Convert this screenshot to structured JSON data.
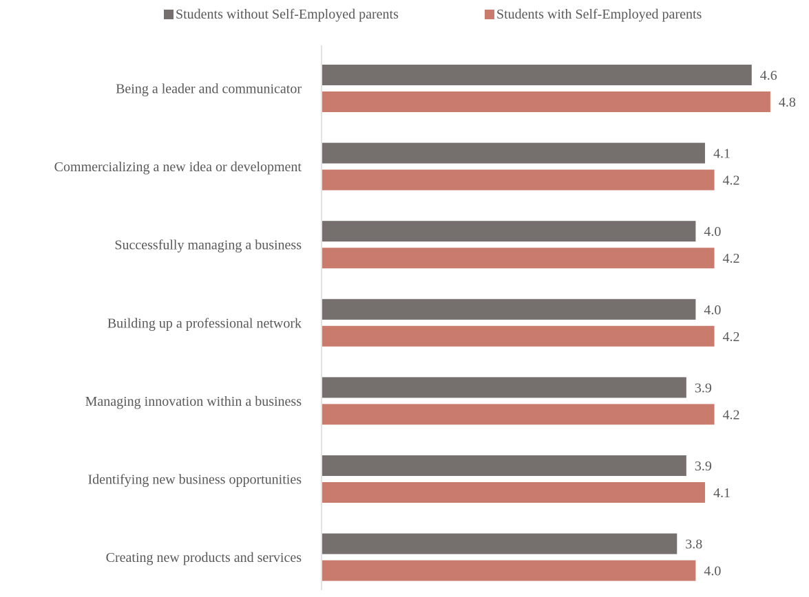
{
  "chart_data": {
    "type": "bar",
    "orientation": "horizontal",
    "categories": [
      "Being a leader and communicator",
      "Commercializing a new idea or development",
      "Successfully managing a business",
      "Building up a professional network",
      "Managing innovation within a business",
      "Identifying new business opportunities",
      "Creating new products and services"
    ],
    "series": [
      {
        "name": "Students without Self-Employed parents",
        "color": "#75706d",
        "values": [
          4.6,
          4.1,
          4.0,
          4.0,
          3.9,
          3.9,
          3.8
        ],
        "labels": [
          "4.6",
          "4.1",
          "4.0",
          "4.0",
          "3.9",
          "3.9",
          "3.8"
        ]
      },
      {
        "name": "Students with Self-Employed parents",
        "color": "#c97b6d",
        "values": [
          4.8,
          4.2,
          4.2,
          4.2,
          4.2,
          4.1,
          4.0
        ],
        "labels": [
          "4.8",
          "4.2",
          "4.2",
          "4.2",
          "4.2",
          "4.1",
          "4.0"
        ]
      }
    ],
    "title": "",
    "xlabel": "",
    "ylabel": "",
    "legend_position": "top",
    "grid": false,
    "axis_line_color": "#d9d9d9",
    "label_color": "#595959"
  }
}
